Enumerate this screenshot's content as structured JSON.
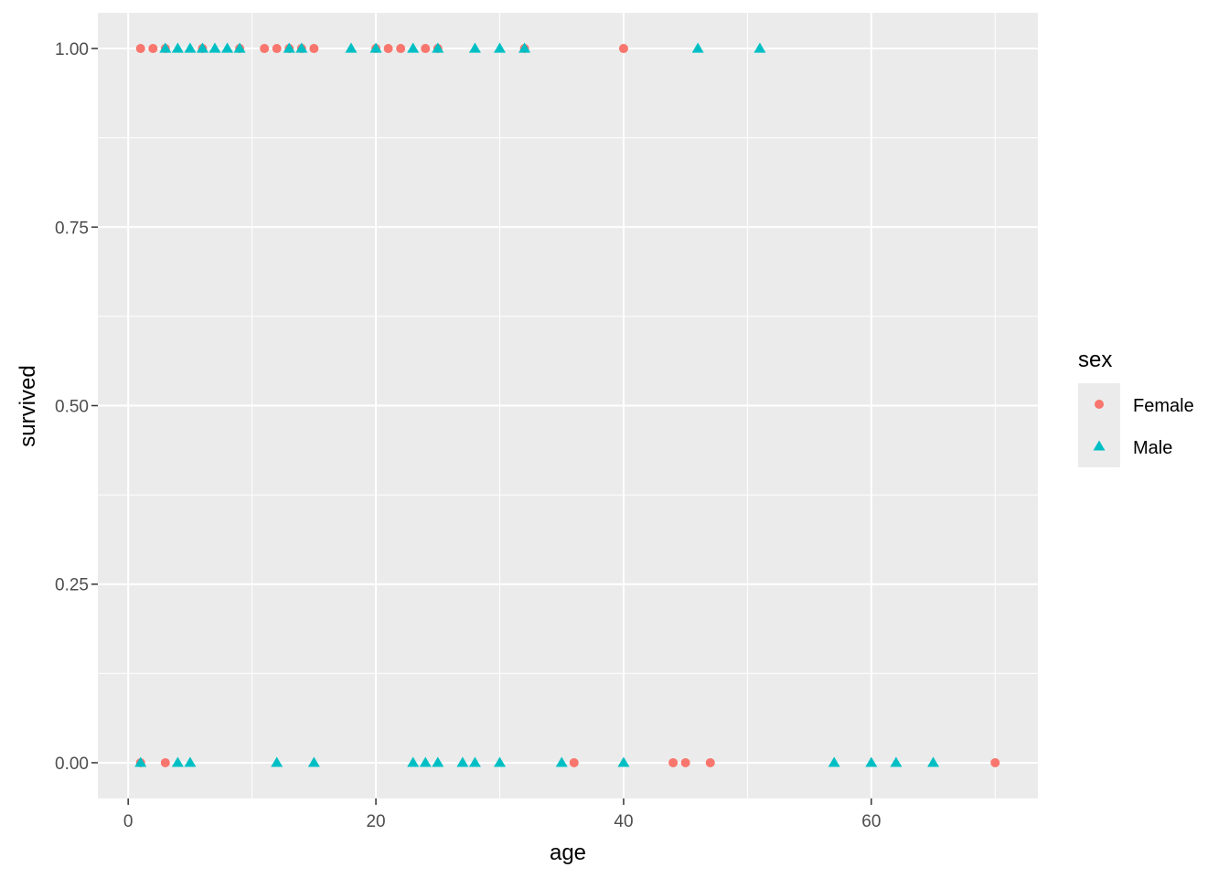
{
  "colors": {
    "panel": "#EBEBEB",
    "grid_major": "#FFFFFF",
    "female": "#F8766D",
    "male": "#00BFC4",
    "tick": "#333333"
  },
  "chart_data": {
    "type": "scatter",
    "title": "",
    "xlabel": "age",
    "ylabel": "survived",
    "xlim": [
      -2.45,
      73.45
    ],
    "ylim": [
      -0.05,
      1.05
    ],
    "x_ticks": [
      0,
      20,
      40,
      60
    ],
    "x_tick_labels": [
      "0",
      "20",
      "40",
      "60"
    ],
    "y_ticks": [
      0,
      0.25,
      0.5,
      0.75,
      1
    ],
    "y_tick_labels": [
      "0.00",
      "0.25",
      "0.50",
      "0.75",
      "1.00"
    ],
    "grid": true,
    "legend": {
      "title": "sex",
      "placement": "right"
    },
    "series": [
      {
        "name": "Female",
        "shape": "circle",
        "color": "#F8766D",
        "points": [
          [
            1,
            1
          ],
          [
            2,
            1
          ],
          [
            3,
            1
          ],
          [
            6,
            1
          ],
          [
            9,
            1
          ],
          [
            11,
            1
          ],
          [
            12,
            1
          ],
          [
            13,
            1
          ],
          [
            14,
            1
          ],
          [
            15,
            1
          ],
          [
            20,
            1
          ],
          [
            21,
            1
          ],
          [
            22,
            1
          ],
          [
            24,
            1
          ],
          [
            25,
            1
          ],
          [
            32,
            1
          ],
          [
            40,
            1
          ],
          [
            1,
            0
          ],
          [
            3,
            0
          ],
          [
            36,
            0
          ],
          [
            44,
            0
          ],
          [
            45,
            0
          ],
          [
            47,
            0
          ],
          [
            70,
            0
          ]
        ]
      },
      {
        "name": "Male",
        "shape": "triangle",
        "color": "#00BFC4",
        "points": [
          [
            3,
            1
          ],
          [
            4,
            1
          ],
          [
            5,
            1
          ],
          [
            6,
            1
          ],
          [
            7,
            1
          ],
          [
            8,
            1
          ],
          [
            9,
            1
          ],
          [
            13,
            1
          ],
          [
            14,
            1
          ],
          [
            18,
            1
          ],
          [
            20,
            1
          ],
          [
            23,
            1
          ],
          [
            25,
            1
          ],
          [
            28,
            1
          ],
          [
            30,
            1
          ],
          [
            32,
            1
          ],
          [
            46,
            1
          ],
          [
            51,
            1
          ],
          [
            1,
            0
          ],
          [
            4,
            0
          ],
          [
            5,
            0
          ],
          [
            12,
            0
          ],
          [
            15,
            0
          ],
          [
            23,
            0
          ],
          [
            24,
            0
          ],
          [
            25,
            0
          ],
          [
            27,
            0
          ],
          [
            28,
            0
          ],
          [
            30,
            0
          ],
          [
            35,
            0
          ],
          [
            40,
            0
          ],
          [
            57,
            0
          ],
          [
            60,
            0
          ],
          [
            62,
            0
          ],
          [
            65,
            0
          ]
        ]
      }
    ]
  }
}
